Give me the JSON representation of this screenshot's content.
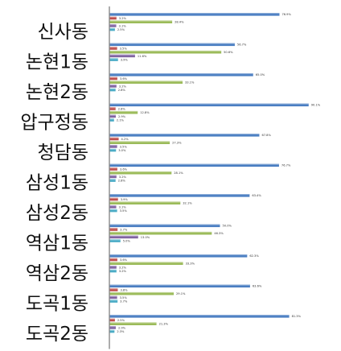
{
  "chart_data": {
    "type": "bar",
    "orientation": "horizontal",
    "categories": [
      "신사동",
      "논현1동",
      "논현2동",
      "압구정동",
      "청담동",
      "삼성1동",
      "삼성2동",
      "역삼1동",
      "역삼2동",
      "도곡1동",
      "도곡2동"
    ],
    "series": [
      {
        "color": "#4a7ec2",
        "values": [
          76.9,
          56.7,
          65.0,
          90.1,
          67.8,
          76.7,
          63.4,
          50.0,
          62.3,
          63.6,
          81.3
        ]
      },
      {
        "color": "#c0504d",
        "values": [
          3.2,
          3.5,
          3.6,
          2.8,
          4.2,
          3.6,
          3.9,
          3.7,
          3.6,
          3.8,
          2.5
        ]
      },
      {
        "color": "#9bbb59",
        "values": [
          28.4,
          50.6,
          33.1,
          12.8,
          27.3,
          28.1,
          32.1,
          46.3,
          33.3,
          29.1,
          21.3
        ]
      },
      {
        "color": "#8064a2",
        "values": [
          3.1,
          11.6,
          3.2,
          2.9,
          3.5,
          3.2,
          3.1,
          13.0,
          3.2,
          3.5,
          2.9
        ]
      },
      {
        "color": "#4bacc6",
        "values": [
          2.5,
          3.9,
          2.8,
          2.1,
          3.0,
          2.8,
          3.5,
          5.0,
          3.2,
          3.7,
          2.3
        ]
      }
    ],
    "data_labels": [
      [
        "76.9%",
        "3.2%",
        "28.4%",
        "3.1%",
        "2.5%"
      ],
      [
        "56.7%",
        "3.5%",
        "50.6%",
        "11.6%",
        "3.9%"
      ],
      [
        "65.0%",
        "3.6%",
        "33.1%",
        "3.2%",
        "2.8%"
      ],
      [
        "90.1%",
        "2.8%",
        "12.8%",
        "2.9%",
        "2.1%"
      ],
      [
        "67.8%",
        "4.2%",
        "27.3%",
        "3.5%",
        "3.0%"
      ],
      [
        "76.7%",
        "3.6%",
        "28.1%",
        "3.2%",
        "2.8%"
      ],
      [
        "63.4%",
        "3.9%",
        "32.1%",
        "3.1%",
        "3.5%"
      ],
      [
        "50.0%",
        "3.7%",
        "46.3%",
        "13.0%",
        "5.0%"
      ],
      [
        "62.3%",
        "3.6%",
        "33.3%",
        "3.2%",
        "3.2%"
      ],
      [
        "63.6%",
        "3.8%",
        "29.1%",
        "3.5%",
        "3.7%"
      ],
      [
        "81.3%",
        "2.5%",
        "21.3%",
        "2.9%",
        "2.3%"
      ]
    ],
    "xlim": [
      0,
      100
    ],
    "legend": "none",
    "grid": false
  }
}
